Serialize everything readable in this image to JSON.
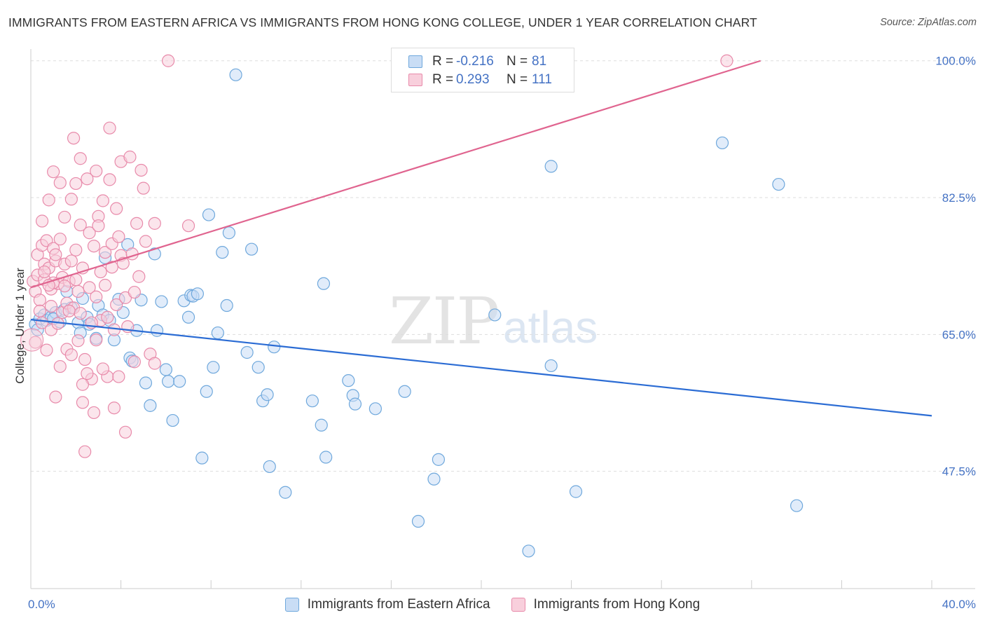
{
  "header": {
    "title": "IMMIGRANTS FROM EASTERN AFRICA VS IMMIGRANTS FROM HONG KONG COLLEGE, UNDER 1 YEAR CORRELATION CHART",
    "source": "Source: ZipAtlas.com"
  },
  "watermark": {
    "zip": "ZIP",
    "atlas": "atlas"
  },
  "legend": {
    "r_label": "R =",
    "n_label": "N =",
    "series": [
      {
        "name": "Immigrants from Eastern Africa",
        "r": "-0.216",
        "n": "81"
      },
      {
        "name": "Immigrants from Hong Kong",
        "r": "0.293",
        "n": "111"
      }
    ]
  },
  "chart_data": {
    "type": "scatter",
    "title": "IMMIGRANTS FROM EASTERN AFRICA VS IMMIGRANTS FROM HONG KONG COLLEGE, UNDER 1 YEAR CORRELATION CHART",
    "xlabel": "",
    "ylabel": "College, Under 1 year",
    "xlim": [
      0,
      40
    ],
    "ylim": [
      32.5,
      101.5
    ],
    "x_tick_labels": [
      "0.0%",
      "40.0%"
    ],
    "y_ticks": [
      47.5,
      65.0,
      82.5,
      100.0
    ],
    "y_tick_labels": [
      "47.5%",
      "65.0%",
      "82.5%",
      "100.0%"
    ],
    "grid": true,
    "colors": {
      "eastern_africa": "#6fa8dc",
      "eastern_africa_fill": "#c9ddf5",
      "eastern_africa_line": "#2b6cd4",
      "hong_kong": "#e88aaa",
      "hong_kong_fill": "#f8cfdc",
      "hong_kong_line": "#e0648f"
    },
    "series": [
      {
        "name": "Immigrants from Eastern Africa",
        "trend": {
          "x": [
            0,
            40
          ],
          "y": [
            66.9,
            54.6
          ]
        },
        "points": [
          [
            0.2,
            66.3
          ],
          [
            0.4,
            67.0
          ],
          [
            0.6,
            67.5
          ],
          [
            0.7,
            66.8
          ],
          [
            0.9,
            67.2
          ],
          [
            1.1,
            67.8
          ],
          [
            1.3,
            66.6
          ],
          [
            1.5,
            68.2
          ],
          [
            1.6,
            70.5
          ],
          [
            1.8,
            68.4
          ],
          [
            2.1,
            66.5
          ],
          [
            2.2,
            65.2
          ],
          [
            2.3,
            69.6
          ],
          [
            2.5,
            67.2
          ],
          [
            2.6,
            66.3
          ],
          [
            2.9,
            64.5
          ],
          [
            3.0,
            68.7
          ],
          [
            3.2,
            67.5
          ],
          [
            3.3,
            74.8
          ],
          [
            3.5,
            66.8
          ],
          [
            3.7,
            64.3
          ],
          [
            3.9,
            69.5
          ],
          [
            4.1,
            67.8
          ],
          [
            4.3,
            76.5
          ],
          [
            4.4,
            62.0
          ],
          [
            4.5,
            61.6
          ],
          [
            4.7,
            65.5
          ],
          [
            4.9,
            69.4
          ],
          [
            5.1,
            58.8
          ],
          [
            5.3,
            55.9
          ],
          [
            5.5,
            75.3
          ],
          [
            5.6,
            65.5
          ],
          [
            5.8,
            69.2
          ],
          [
            6.0,
            60.5
          ],
          [
            6.1,
            59.0
          ],
          [
            6.3,
            54.0
          ],
          [
            6.6,
            59.0
          ],
          [
            6.8,
            69.3
          ],
          [
            7.0,
            67.2
          ],
          [
            7.1,
            70.0
          ],
          [
            7.2,
            69.9
          ],
          [
            7.4,
            70.2
          ],
          [
            7.6,
            49.2
          ],
          [
            7.8,
            57.7
          ],
          [
            7.9,
            80.3
          ],
          [
            8.1,
            60.8
          ],
          [
            8.3,
            65.2
          ],
          [
            8.5,
            75.5
          ],
          [
            8.7,
            68.7
          ],
          [
            8.8,
            78.0
          ],
          [
            9.1,
            98.2
          ],
          [
            9.6,
            62.7
          ],
          [
            9.8,
            75.9
          ],
          [
            10.1,
            60.8
          ],
          [
            10.3,
            56.5
          ],
          [
            10.5,
            57.3
          ],
          [
            10.6,
            48.1
          ],
          [
            10.8,
            63.4
          ],
          [
            11.3,
            44.8
          ],
          [
            12.5,
            56.5
          ],
          [
            12.9,
            53.4
          ],
          [
            13.0,
            71.5
          ],
          [
            13.1,
            49.3
          ],
          [
            14.1,
            59.1
          ],
          [
            14.3,
            57.2
          ],
          [
            14.4,
            56.1
          ],
          [
            15.3,
            55.5
          ],
          [
            16.6,
            57.7
          ],
          [
            17.2,
            41.1
          ],
          [
            17.9,
            46.5
          ],
          [
            18.1,
            49.0
          ],
          [
            20.6,
            67.5
          ],
          [
            22.1,
            37.3
          ],
          [
            23.1,
            86.5
          ],
          [
            23.1,
            61.0
          ],
          [
            24.2,
            44.9
          ],
          [
            30.7,
            89.5
          ],
          [
            33.2,
            84.2
          ],
          [
            34.0,
            43.1
          ],
          [
            0.3,
            65.6
          ],
          [
            1.0,
            67.0
          ]
        ]
      },
      {
        "name": "Immigrants from Hong Kong",
        "trend": {
          "x": [
            0,
            32.4
          ],
          "y": [
            71.0,
            100.0
          ]
        },
        "points": [
          [
            0.1,
            71.8
          ],
          [
            0.2,
            70.5
          ],
          [
            0.3,
            72.6
          ],
          [
            0.3,
            75.2
          ],
          [
            0.4,
            69.4
          ],
          [
            0.4,
            68.0
          ],
          [
            0.5,
            76.4
          ],
          [
            0.5,
            66.5
          ],
          [
            0.6,
            74.0
          ],
          [
            0.6,
            72.0
          ],
          [
            0.7,
            63.0
          ],
          [
            0.7,
            77.0
          ],
          [
            0.8,
            73.5
          ],
          [
            0.8,
            82.2
          ],
          [
            0.9,
            70.8
          ],
          [
            0.9,
            65.6
          ],
          [
            1.0,
            85.8
          ],
          [
            1.0,
            76.0
          ],
          [
            1.1,
            74.4
          ],
          [
            1.1,
            57.0
          ],
          [
            1.2,
            71.5
          ],
          [
            1.3,
            84.4
          ],
          [
            1.3,
            77.2
          ],
          [
            1.4,
            67.8
          ],
          [
            1.4,
            72.3
          ],
          [
            1.5,
            80.0
          ],
          [
            1.5,
            74.0
          ],
          [
            1.6,
            69.0
          ],
          [
            1.6,
            63.1
          ],
          [
            1.7,
            71.8
          ],
          [
            1.8,
            82.3
          ],
          [
            1.8,
            74.4
          ],
          [
            1.9,
            90.1
          ],
          [
            1.9,
            68.4
          ],
          [
            2.0,
            84.3
          ],
          [
            2.0,
            75.8
          ],
          [
            2.1,
            70.5
          ],
          [
            2.2,
            87.5
          ],
          [
            2.2,
            79.0
          ],
          [
            2.3,
            73.5
          ],
          [
            2.3,
            56.3
          ],
          [
            2.4,
            50.0
          ],
          [
            2.4,
            61.8
          ],
          [
            2.5,
            84.9
          ],
          [
            2.6,
            78.0
          ],
          [
            2.6,
            71.0
          ],
          [
            2.7,
            59.3
          ],
          [
            2.8,
            76.3
          ],
          [
            2.8,
            55.0
          ],
          [
            2.9,
            85.9
          ],
          [
            2.9,
            64.3
          ],
          [
            3.0,
            80.1
          ],
          [
            3.1,
            73.0
          ],
          [
            3.1,
            66.8
          ],
          [
            3.2,
            82.1
          ],
          [
            3.3,
            75.5
          ],
          [
            3.3,
            71.3
          ],
          [
            3.4,
            59.6
          ],
          [
            3.5,
            84.8
          ],
          [
            3.5,
            91.4
          ],
          [
            3.6,
            76.6
          ],
          [
            3.7,
            55.6
          ],
          [
            3.7,
            65.6
          ],
          [
            3.8,
            68.8
          ],
          [
            3.9,
            77.5
          ],
          [
            3.9,
            59.6
          ],
          [
            4.0,
            75.1
          ],
          [
            4.0,
            87.1
          ],
          [
            4.1,
            74.1
          ],
          [
            4.2,
            69.7
          ],
          [
            4.2,
            52.5
          ],
          [
            4.3,
            66.0
          ],
          [
            4.4,
            87.7
          ],
          [
            4.5,
            75.3
          ],
          [
            4.6,
            70.4
          ],
          [
            4.7,
            79.2
          ],
          [
            4.8,
            72.4
          ],
          [
            4.9,
            86.0
          ],
          [
            5.0,
            83.7
          ],
          [
            5.1,
            76.9
          ],
          [
            5.3,
            62.5
          ],
          [
            5.5,
            79.2
          ],
          [
            5.5,
            61.3
          ],
          [
            6.1,
            100.0
          ],
          [
            7.0,
            78.9
          ],
          [
            3.8,
            81.1
          ],
          [
            1.2,
            66.4
          ],
          [
            1.7,
            68.0
          ],
          [
            2.1,
            64.2
          ],
          [
            2.7,
            66.5
          ],
          [
            0.9,
            68.6
          ],
          [
            1.3,
            60.9
          ],
          [
            1.8,
            62.4
          ],
          [
            2.3,
            58.6
          ],
          [
            3.0,
            78.9
          ],
          [
            0.5,
            79.5
          ],
          [
            2.5,
            60.0
          ],
          [
            1.0,
            71.6
          ],
          [
            3.6,
            73.6
          ],
          [
            0.6,
            73.0
          ],
          [
            2.0,
            72.0
          ],
          [
            1.5,
            71.2
          ],
          [
            4.6,
            61.5
          ],
          [
            30.9,
            100.0
          ],
          [
            0.2,
            64.0
          ],
          [
            3.2,
            60.6
          ],
          [
            2.9,
            69.8
          ],
          [
            1.1,
            75.2
          ],
          [
            0.8,
            71.3
          ],
          [
            2.2,
            67.7
          ],
          [
            3.4,
            67.2
          ]
        ]
      }
    ]
  }
}
